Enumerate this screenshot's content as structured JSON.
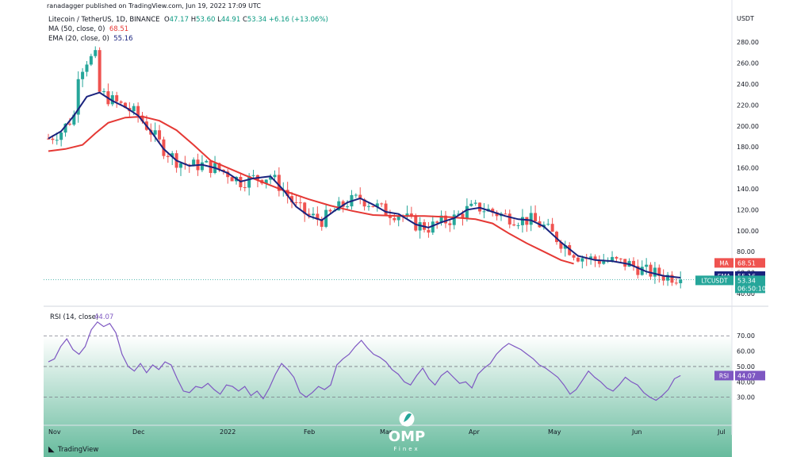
{
  "header": {
    "publisher": "ranadagger published on TradingView.com, Jun 19, 2022 17:09 UTC",
    "symbol_title": "Litecoin / TetherUS, 1D, BINANCE",
    "ohlc": {
      "o_label": "O",
      "o": "47.17",
      "h_label": "H",
      "h": "53.60",
      "l_label": "L",
      "l": "44.91",
      "c_label": "C",
      "c": "53.34",
      "change": "+6.16 (+13.06%)"
    },
    "ma_label": "MA (50, close, 0)",
    "ma_value": "68.51",
    "ema_label": "EMA (20, close, 0)",
    "ema_value": "55.16"
  },
  "rsi_panel": {
    "label": "RSI (14, close)",
    "value": "44.07"
  },
  "price_axis": {
    "currency": "USDT",
    "ticks": [
      "280.00",
      "260.00",
      "240.00",
      "220.00",
      "200.00",
      "180.00",
      "160.00",
      "140.00",
      "120.00",
      "100.00",
      "80.00",
      "60.00",
      "40.00"
    ]
  },
  "rsi_axis": {
    "ticks": [
      "70.00",
      "60.00",
      "50.00",
      "40.00",
      "30.00"
    ]
  },
  "time_axis": {
    "labels": [
      "Nov",
      "Dec",
      "2022",
      "Feb",
      "Mar",
      "Apr",
      "May",
      "Jun",
      "Jul"
    ]
  },
  "badges": {
    "ma": {
      "label": "MA",
      "value": "68.51",
      "color": "#ef5350"
    },
    "ema": {
      "label": "EMA",
      "value": "55.16",
      "color": "#1a237e"
    },
    "last": {
      "label": "LTCUSDT",
      "value": "53.34",
      "countdown": "06:50:10",
      "color": "#26a69a"
    },
    "rsi": {
      "label": "RSI",
      "value": "44.07",
      "color": "#7e57c2"
    }
  },
  "footer": {
    "brand": "TradingView"
  },
  "watermark": {
    "brand": "OMP",
    "sub": "Finex"
  },
  "colors": {
    "up": "#26a69a",
    "down": "#ef5350",
    "ma": "#e53935",
    "ema": "#1a237e",
    "rsi": "#7e57c2",
    "rsi_band": "#b2dfdb"
  },
  "chart_data": [
    {
      "type": "candlestick",
      "title": "Litecoin / TetherUS, 1D, BINANCE",
      "ylabel": "USDT",
      "ylim": [
        40,
        290
      ],
      "x_ticks": [
        "Nov",
        "Dec",
        "2022",
        "Feb",
        "Mar",
        "Apr",
        "May",
        "Jun",
        "Jul"
      ],
      "series": [
        {
          "name": "MA (50, close, 0)",
          "points": [
            [
              0,
              176
            ],
            [
              4,
              178
            ],
            [
              8,
              182
            ],
            [
              11,
              193
            ],
            [
              14,
              203
            ],
            [
              18,
              208
            ],
            [
              22,
              209
            ],
            [
              26,
              205
            ],
            [
              30,
              196
            ],
            [
              34,
              182
            ],
            [
              38,
              167
            ],
            [
              42,
              160
            ],
            [
              46,
              153
            ],
            [
              51,
              145
            ],
            [
              56,
              137
            ],
            [
              61,
              130
            ],
            [
              66,
              124
            ],
            [
              71,
              119
            ],
            [
              76,
              115
            ],
            [
              82,
              114
            ],
            [
              88,
              114
            ],
            [
              94,
              113
            ],
            [
              100,
              111
            ],
            [
              104,
              107
            ],
            [
              108,
              97
            ],
            [
              112,
              88
            ],
            [
              116,
              80
            ],
            [
              120,
              72
            ],
            [
              123,
              68.51
            ]
          ]
        },
        {
          "name": "EMA (20, close, 0)",
          "points": [
            [
              0,
              188
            ],
            [
              3,
              195
            ],
            [
              6,
              210
            ],
            [
              9,
              228
            ],
            [
              12,
              232
            ],
            [
              15,
              224
            ],
            [
              18,
              218
            ],
            [
              21,
              210
            ],
            [
              24,
              195
            ],
            [
              27,
              178
            ],
            [
              30,
              167
            ],
            [
              33,
              162
            ],
            [
              36,
              163
            ],
            [
              39,
              160
            ],
            [
              42,
              155
            ],
            [
              45,
              147
            ],
            [
              48,
              150
            ],
            [
              52,
              152
            ],
            [
              55,
              139
            ],
            [
              58,
              123
            ],
            [
              61,
              114
            ],
            [
              64,
              110
            ],
            [
              67,
              119
            ],
            [
              70,
              127
            ],
            [
              73,
              131
            ],
            [
              76,
              125
            ],
            [
              79,
              118
            ],
            [
              82,
              116
            ],
            [
              86,
              106
            ],
            [
              89,
              103
            ],
            [
              92,
              108
            ],
            [
              95,
              112
            ],
            [
              98,
              120
            ],
            [
              101,
              122
            ],
            [
              104,
              118
            ],
            [
              107,
              114
            ],
            [
              110,
              111
            ],
            [
              113,
              110
            ],
            [
              116,
              104
            ],
            [
              120,
              89
            ],
            [
              124,
              76
            ],
            [
              128,
              72
            ],
            [
              132,
              71
            ],
            [
              136,
              68
            ],
            [
              140,
              61
            ],
            [
              144,
              57
            ],
            [
              148,
              55.16
            ]
          ]
        }
      ],
      "last_close": 53.34
    },
    {
      "type": "line",
      "title": "RSI (14, close)",
      "ylim": [
        20,
        82
      ],
      "reference_lines": [
        70,
        50,
        30
      ],
      "series": [
        {
          "name": "RSI (14, close)",
          "values": [
            53,
            55,
            63,
            68,
            61,
            58,
            63,
            74,
            79,
            76,
            78,
            72,
            58,
            50,
            47,
            52,
            46,
            51,
            48,
            53,
            51,
            42,
            34,
            33,
            37,
            36,
            39,
            35,
            32,
            38,
            37,
            34,
            37,
            31,
            34,
            29,
            36,
            45,
            52,
            48,
            43,
            33,
            30,
            33,
            37,
            35,
            38,
            51,
            55,
            58,
            63,
            67,
            62,
            58,
            56,
            53,
            48,
            45,
            40,
            38,
            44,
            49,
            42,
            38,
            44,
            47,
            43,
            39,
            40,
            36,
            45,
            49,
            52,
            58,
            62,
            65,
            63,
            61,
            58,
            55,
            51,
            49,
            46,
            43,
            38,
            32,
            35,
            41,
            47,
            43,
            40,
            36,
            34,
            38,
            43,
            40,
            38,
            33,
            30,
            28,
            31,
            35,
            42,
            44.07
          ]
        }
      ]
    }
  ]
}
